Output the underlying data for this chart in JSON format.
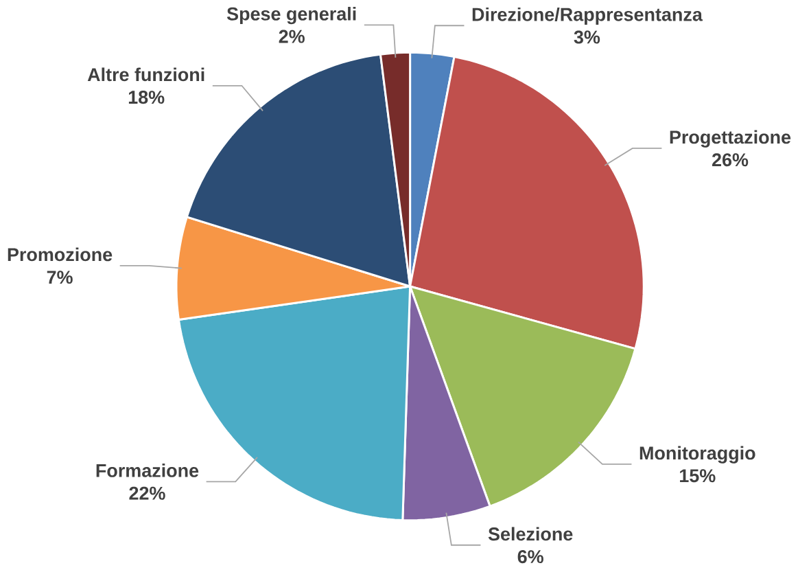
{
  "chart_data": {
    "type": "pie",
    "categories": [
      "Direzione/Rappresentanza",
      "Progettazione",
      "Monitoraggio",
      "Selezione",
      "Formazione",
      "Promozione",
      "Altre funzioni",
      "Spese generali"
    ],
    "values": [
      3,
      26,
      15,
      6,
      22,
      7,
      18,
      2
    ],
    "value_labels": [
      "3%",
      "26%",
      "15%",
      "6%",
      "22%",
      "7%",
      "18%",
      "2%"
    ],
    "colors": [
      "#4f81bd",
      "#c0504d",
      "#9bbb59",
      "#8064a2",
      "#4bacc6",
      "#f79646",
      "#2c4d75",
      "#772c2a"
    ]
  }
}
